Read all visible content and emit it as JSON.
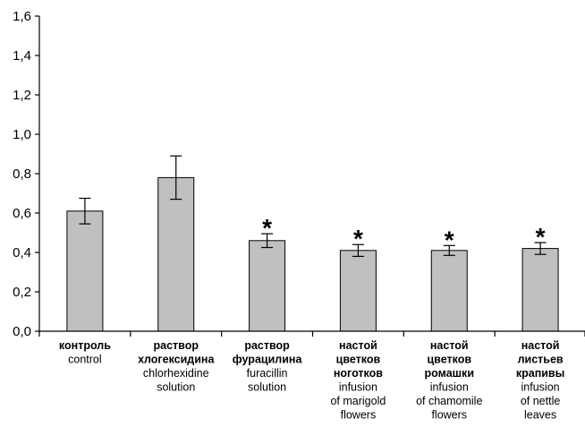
{
  "chart_data": {
    "type": "bar",
    "title": "",
    "xlabel": "",
    "ylabel": "",
    "ylim": [
      0,
      1.6
    ],
    "yticks": [
      0.0,
      0.2,
      0.4,
      0.6,
      0.8,
      1.0,
      1.2,
      1.4,
      1.6
    ],
    "ytick_labels": [
      "0,0",
      "0,2",
      "0,4",
      "0,6",
      "0,8",
      "1,0",
      "1,2",
      "1,4",
      "1,6"
    ],
    "grid": false,
    "legend": "none",
    "bar_color": "#c0c0c0",
    "significance_marker": "*",
    "categories": [
      {
        "ru": [
          "контроль"
        ],
        "en": [
          "control"
        ]
      },
      {
        "ru": [
          "раствор",
          "хлогексидина"
        ],
        "en": [
          "chlorhexidine",
          "solution"
        ]
      },
      {
        "ru": [
          "раствор",
          "фурацилина"
        ],
        "en": [
          "furacillin",
          "solution"
        ]
      },
      {
        "ru": [
          "настой",
          "цветков",
          "ноготков"
        ],
        "en": [
          "infusion",
          "of marigold",
          "flowers"
        ]
      },
      {
        "ru": [
          "настой",
          "цветков",
          "ромашки"
        ],
        "en": [
          "infusion",
          "of chamomile",
          "flowers"
        ]
      },
      {
        "ru": [
          "настой",
          "листьев",
          "крапивы"
        ],
        "en": [
          "infusion",
          "of nettle",
          "leaves"
        ]
      }
    ],
    "values": [
      0.61,
      0.78,
      0.46,
      0.41,
      0.41,
      0.42
    ],
    "errors": [
      0.065,
      0.11,
      0.035,
      0.03,
      0.025,
      0.03
    ],
    "significant": [
      false,
      false,
      true,
      true,
      true,
      true
    ]
  }
}
